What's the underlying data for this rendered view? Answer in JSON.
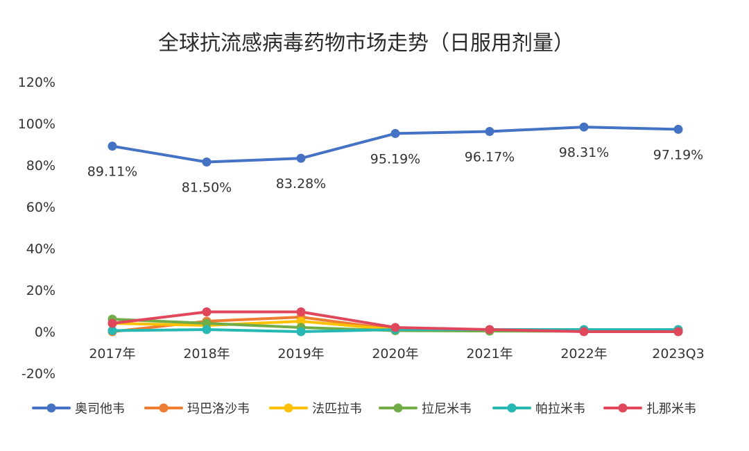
{
  "chart_data": {
    "type": "line",
    "title": "全球抗流感病毒药物市场走势（日服用剂量）",
    "xlabel": "",
    "ylabel": "",
    "categories": [
      "2017年",
      "2018年",
      "2019年",
      "2020年",
      "2021年",
      "2022年",
      "2023Q3"
    ],
    "ylim": [
      -20,
      120
    ],
    "yticks": [
      -20,
      0,
      20,
      40,
      60,
      80,
      100,
      120
    ],
    "ytick_labels": [
      "-20%",
      "0%",
      "20%",
      "40%",
      "60%",
      "80%",
      "100%",
      "120%"
    ],
    "grid": false,
    "legend_position": "bottom",
    "series": [
      {
        "name": "奥司他韦",
        "color": "#4472c4",
        "values": [
          89.11,
          81.5,
          83.28,
          95.19,
          96.17,
          98.31,
          97.19
        ],
        "labels": [
          "89.11%",
          "81.50%",
          "83.28%",
          "95.19%",
          "96.17%",
          "98.31%",
          "97.19%"
        ]
      },
      {
        "name": "玛巴洛沙韦",
        "color": "#ed7d31",
        "values": [
          0,
          5,
          7,
          1,
          0.5,
          0.3,
          0.2
        ]
      },
      {
        "name": "法匹拉韦",
        "color": "#ffc000",
        "values": [
          4,
          3,
          5,
          1,
          0.5,
          0.3,
          0.2
        ]
      },
      {
        "name": "拉尼米韦",
        "color": "#70ad47",
        "values": [
          6,
          4,
          2,
          0.5,
          0.3,
          0.2,
          0.1
        ]
      },
      {
        "name": "帕拉米韦",
        "color": "#26b9b3",
        "values": [
          0.5,
          1,
          0,
          1,
          1,
          1,
          1
        ]
      },
      {
        "name": "扎那米韦",
        "color": "#e0475b",
        "values": [
          4,
          9.5,
          9.5,
          2,
          1,
          0,
          0
        ]
      }
    ]
  }
}
